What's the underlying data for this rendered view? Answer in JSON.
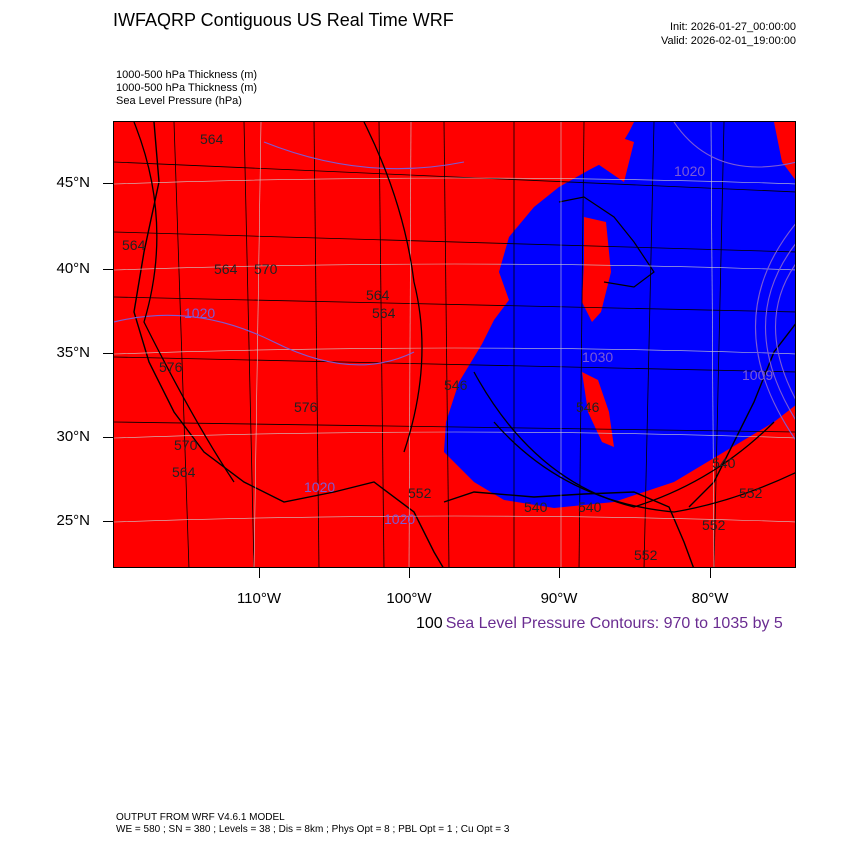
{
  "header": {
    "title": "IWFAQRP Contiguous US Real Time WRF",
    "init": "Init: 2026-01-27_00:00:00",
    "valid": "Valid: 2026-02-01_19:00:00"
  },
  "fields": [
    "1000-500 hPa Thickness   (m)",
    "1000-500 hPa Thickness   (m)",
    "Sea Level Pressure   (hPa)"
  ],
  "axes": {
    "lat_labels": [
      "45°N",
      "40°N",
      "35°N",
      "30°N",
      "25°N"
    ],
    "lon_labels": [
      "110°W",
      "100°W",
      "90°W",
      "80°W"
    ]
  },
  "map_labels": {
    "thickness": [
      "564",
      "564",
      "564",
      "570",
      "576",
      "564",
      "564",
      "546",
      "540",
      "540",
      "540",
      "552",
      "552",
      "552",
      "564",
      "576",
      "552",
      "546",
      "570"
    ],
    "pressure": [
      "1020",
      "1030",
      "1009",
      "1020",
      "1020",
      "1020"
    ]
  },
  "colors": {
    "warm": "#ff0000",
    "cold": "#0000ff",
    "pressure_contour": "#7b5bd6",
    "boundary": "#000000"
  },
  "contour_note": {
    "number": "100",
    "text": "Sea Level Pressure Contours: 970 to 1035 by 5"
  },
  "footer": {
    "line1": "OUTPUT FROM WRF V4.6.1 MODEL",
    "line2": "WE = 580 ; SN = 380 ; Levels = 38 ; Dis = 8km ; Phys Opt = 8 ; PBL Opt = 1 ; Cu Opt = 3"
  }
}
